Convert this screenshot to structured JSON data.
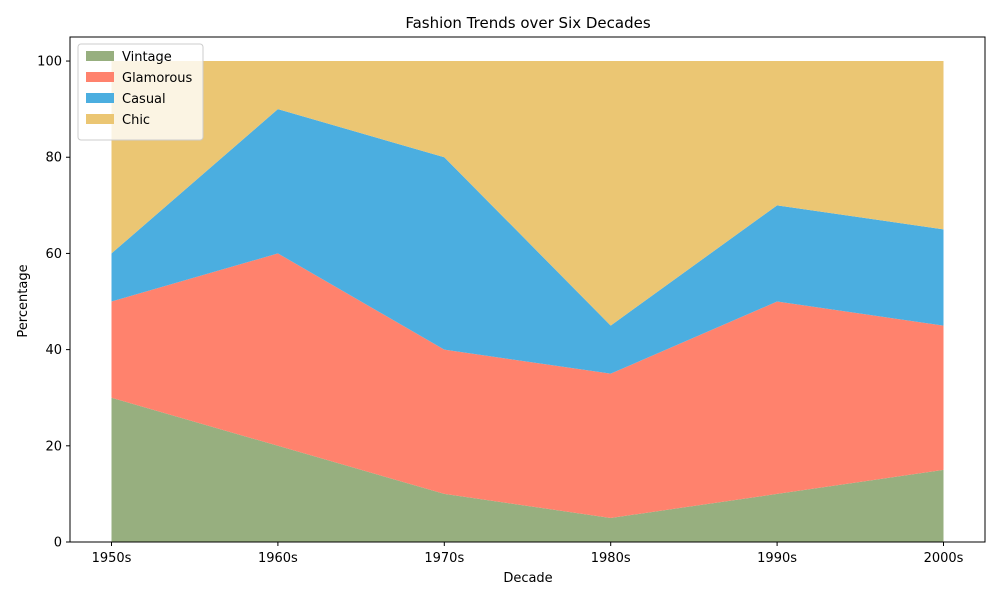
{
  "chart_data": {
    "type": "area",
    "stacked": true,
    "title": "Fashion Trends over Six Decades",
    "xlabel": "Decade",
    "ylabel": "Percentage",
    "categories": [
      "1950s",
      "1960s",
      "1970s",
      "1980s",
      "1990s",
      "2000s"
    ],
    "ylim": [
      0,
      105
    ],
    "yticks": [
      0,
      20,
      40,
      60,
      80,
      100
    ],
    "grid": false,
    "legend_position": "top-left",
    "series": [
      {
        "name": "Vintage",
        "color": "#97AF7F",
        "values": [
          30,
          20,
          10,
          5,
          10,
          15
        ]
      },
      {
        "name": "Glamorous",
        "color": "#FF826D",
        "values": [
          20,
          40,
          30,
          30,
          40,
          30
        ]
      },
      {
        "name": "Casual",
        "color": "#4BAEE0",
        "values": [
          10,
          30,
          40,
          10,
          20,
          20
        ]
      },
      {
        "name": "Chic",
        "color": "#EBC673",
        "values": [
          40,
          10,
          20,
          55,
          30,
          35
        ]
      }
    ]
  }
}
